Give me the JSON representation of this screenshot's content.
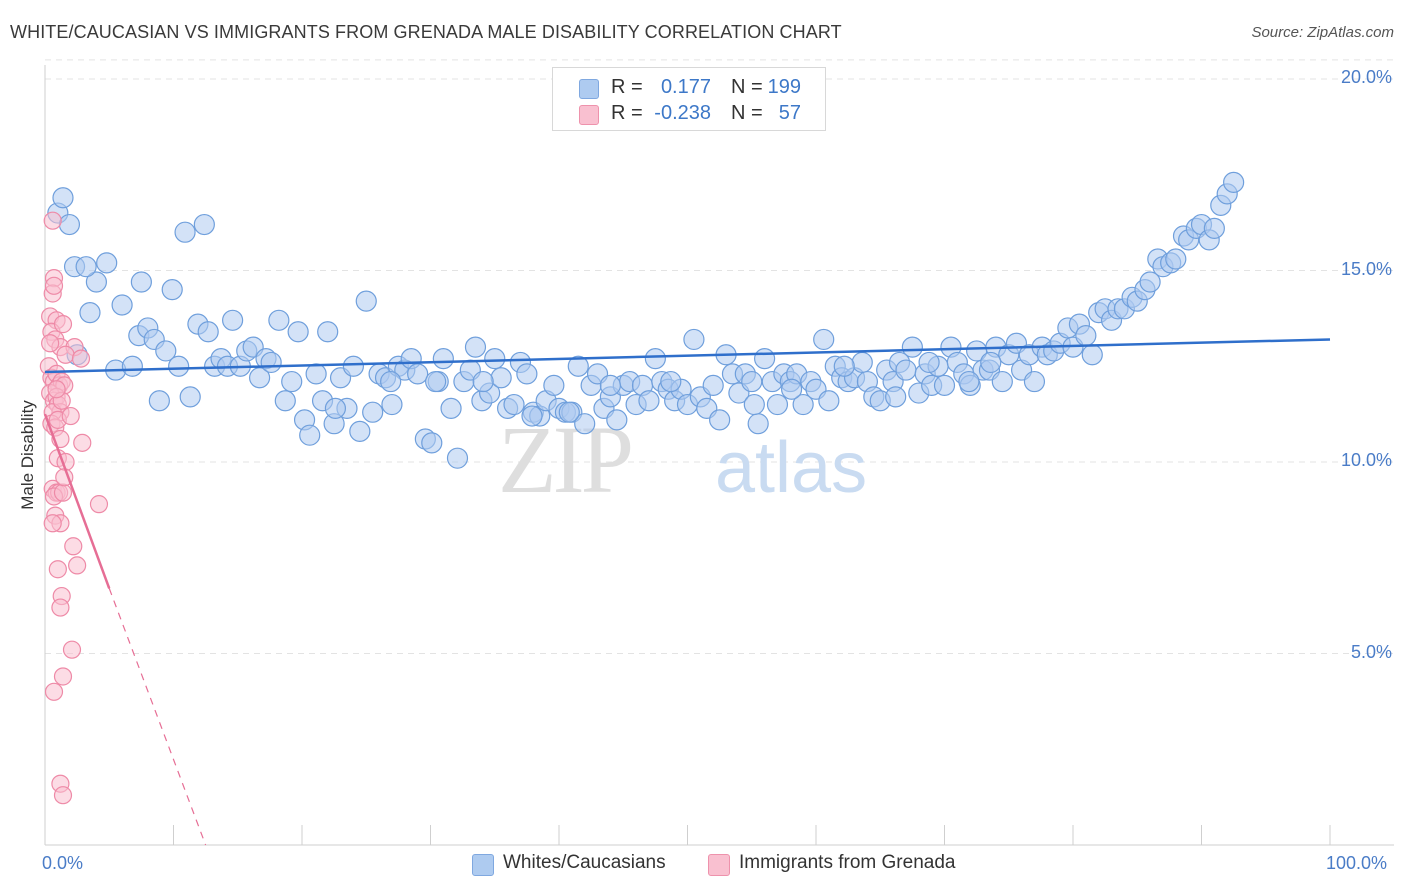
{
  "title": "WHITE/CAUCASIAN VS IMMIGRANTS FROM GRENADA MALE DISABILITY CORRELATION CHART",
  "source": "Source: ZipAtlas.com",
  "watermark": {
    "zip": "ZIP",
    "atlas": "atlas"
  },
  "legend_top": {
    "rows": [
      {
        "r_label": "R =",
        "r_value": "0.177",
        "n_label": "N =",
        "n_value": "199",
        "color": "#aecbf0",
        "border": "#7fa8e0"
      },
      {
        "r_label": "R =",
        "r_value": "-0.238",
        "n_label": "N =",
        "n_value": "57",
        "color": "#f9c0d0",
        "border": "#ee92ac"
      }
    ]
  },
  "legend_bottom": [
    {
      "label": "Whites/Caucasians",
      "color": "#aecbf0",
      "border": "#7fa8e0"
    },
    {
      "label": "Immigrants from Grenada",
      "color": "#f9c0d0",
      "border": "#ee92ac"
    }
  ],
  "chart_data": {
    "type": "scatter",
    "title": "WHITE/CAUCASIAN VS IMMIGRANTS FROM GRENADA MALE DISABILITY CORRELATION CHART",
    "xlabel": "",
    "ylabel": "Male Disability",
    "xlim": [
      0,
      100
    ],
    "ylim": [
      0,
      20.5
    ],
    "x_ticks": [
      "0.0%",
      "100.0%"
    ],
    "y_ticks": [
      {
        "value": 5,
        "label": "5.0%"
      },
      {
        "value": 10,
        "label": "10.0%"
      },
      {
        "value": 15,
        "label": "15.0%"
      },
      {
        "value": 20,
        "label": "20.0%"
      }
    ],
    "grid": true,
    "legend": "bottom",
    "series": [
      {
        "name": "Whites/Caucasians",
        "color": "#aecbf0",
        "stroke": "#6f9fdc",
        "trend": {
          "x": [
            0,
            100
          ],
          "y": [
            12.35,
            13.2
          ],
          "color": "#2f6fcb"
        },
        "points": [
          [
            1.0,
            16.5
          ],
          [
            1.4,
            16.9
          ],
          [
            1.9,
            16.2
          ],
          [
            2.3,
            15.1
          ],
          [
            3.5,
            13.9
          ],
          [
            4.0,
            14.7
          ],
          [
            2.5,
            12.8
          ],
          [
            3.2,
            15.1
          ],
          [
            4.8,
            15.2
          ],
          [
            5.5,
            12.4
          ],
          [
            6.0,
            14.1
          ],
          [
            6.8,
            12.5
          ],
          [
            7.3,
            13.3
          ],
          [
            7.5,
            14.7
          ],
          [
            8.0,
            13.5
          ],
          [
            8.5,
            13.2
          ],
          [
            8.9,
            11.6
          ],
          [
            9.4,
            12.9
          ],
          [
            9.9,
            14.5
          ],
          [
            10.4,
            12.5
          ],
          [
            10.9,
            16.0
          ],
          [
            11.3,
            11.7
          ],
          [
            11.9,
            13.6
          ],
          [
            12.4,
            16.2
          ],
          [
            12.7,
            13.4
          ],
          [
            13.2,
            12.5
          ],
          [
            13.7,
            12.7
          ],
          [
            14.2,
            12.5
          ],
          [
            14.6,
            13.7
          ],
          [
            15.2,
            12.5
          ],
          [
            15.7,
            12.9
          ],
          [
            16.2,
            13.0
          ],
          [
            16.7,
            12.2
          ],
          [
            17.2,
            12.7
          ],
          [
            17.6,
            12.6
          ],
          [
            18.2,
            13.7
          ],
          [
            18.7,
            11.6
          ],
          [
            19.2,
            12.1
          ],
          [
            19.7,
            13.4
          ],
          [
            20.2,
            11.1
          ],
          [
            20.6,
            10.7
          ],
          [
            21.1,
            12.3
          ],
          [
            21.6,
            11.6
          ],
          [
            22.0,
            13.4
          ],
          [
            22.5,
            11.0
          ],
          [
            23.0,
            12.2
          ],
          [
            23.5,
            11.4
          ],
          [
            24.0,
            12.5
          ],
          [
            24.5,
            10.8
          ],
          [
            25.0,
            14.2
          ],
          [
            25.5,
            11.3
          ],
          [
            26.0,
            12.3
          ],
          [
            26.5,
            12.2
          ],
          [
            27.0,
            11.5
          ],
          [
            27.5,
            12.5
          ],
          [
            28.0,
            12.4
          ],
          [
            28.5,
            12.7
          ],
          [
            29.0,
            12.3
          ],
          [
            29.6,
            10.6
          ],
          [
            30.1,
            10.5
          ],
          [
            30.6,
            12.1
          ],
          [
            31.0,
            12.7
          ],
          [
            31.6,
            11.4
          ],
          [
            32.1,
            10.1
          ],
          [
            32.6,
            12.1
          ],
          [
            33.1,
            12.4
          ],
          [
            33.5,
            13.0
          ],
          [
            34.0,
            11.6
          ],
          [
            34.6,
            11.8
          ],
          [
            35.0,
            12.7
          ],
          [
            35.5,
            12.2
          ],
          [
            36.0,
            11.4
          ],
          [
            36.5,
            11.5
          ],
          [
            37.0,
            12.6
          ],
          [
            37.5,
            12.3
          ],
          [
            38.0,
            11.3
          ],
          [
            38.5,
            11.2
          ],
          [
            39.0,
            11.6
          ],
          [
            39.6,
            12.0
          ],
          [
            40.0,
            11.4
          ],
          [
            40.5,
            11.3
          ],
          [
            41.0,
            11.3
          ],
          [
            41.5,
            12.5
          ],
          [
            42.0,
            11.0
          ],
          [
            42.5,
            12.0
          ],
          [
            43.0,
            12.3
          ],
          [
            43.5,
            11.4
          ],
          [
            44.0,
            11.7
          ],
          [
            44.5,
            11.1
          ],
          [
            45.0,
            12.0
          ],
          [
            45.5,
            12.1
          ],
          [
            46.0,
            11.5
          ],
          [
            46.5,
            12.0
          ],
          [
            47.0,
            11.6
          ],
          [
            47.5,
            12.7
          ],
          [
            48.0,
            12.1
          ],
          [
            48.5,
            11.9
          ],
          [
            49.0,
            11.6
          ],
          [
            49.5,
            11.9
          ],
          [
            50.0,
            11.5
          ],
          [
            50.5,
            13.2
          ],
          [
            51.0,
            11.7
          ],
          [
            51.5,
            11.4
          ],
          [
            52.0,
            12.0
          ],
          [
            52.5,
            11.1
          ],
          [
            53.0,
            12.8
          ],
          [
            53.5,
            12.3
          ],
          [
            54.0,
            11.8
          ],
          [
            54.5,
            12.3
          ],
          [
            55.0,
            12.1
          ],
          [
            55.5,
            11.0
          ],
          [
            56.0,
            12.7
          ],
          [
            56.6,
            12.1
          ],
          [
            57.0,
            11.5
          ],
          [
            57.5,
            12.3
          ],
          [
            58.0,
            12.1
          ],
          [
            58.5,
            12.3
          ],
          [
            59.0,
            11.5
          ],
          [
            59.6,
            12.1
          ],
          [
            60.0,
            11.9
          ],
          [
            60.6,
            13.2
          ],
          [
            61.0,
            11.6
          ],
          [
            61.5,
            12.5
          ],
          [
            62.0,
            12.2
          ],
          [
            62.5,
            12.1
          ],
          [
            63.0,
            12.2
          ],
          [
            63.6,
            12.6
          ],
          [
            64.0,
            12.1
          ],
          [
            64.5,
            11.7
          ],
          [
            65.0,
            11.6
          ],
          [
            65.5,
            12.4
          ],
          [
            66.0,
            12.1
          ],
          [
            66.5,
            12.6
          ],
          [
            67.0,
            12.4
          ],
          [
            67.5,
            13.0
          ],
          [
            68.0,
            11.8
          ],
          [
            68.5,
            12.3
          ],
          [
            69.0,
            12.0
          ],
          [
            69.5,
            12.5
          ],
          [
            70.0,
            12.0
          ],
          [
            70.5,
            13.0
          ],
          [
            71.0,
            12.6
          ],
          [
            71.5,
            12.3
          ],
          [
            72.0,
            12.0
          ],
          [
            72.5,
            12.9
          ],
          [
            73.0,
            12.4
          ],
          [
            73.5,
            12.4
          ],
          [
            74.0,
            13.0
          ],
          [
            74.5,
            12.1
          ],
          [
            75.0,
            12.8
          ],
          [
            75.6,
            13.1
          ],
          [
            76.0,
            12.4
          ],
          [
            76.6,
            12.8
          ],
          [
            77.0,
            12.1
          ],
          [
            77.6,
            13.0
          ],
          [
            78.0,
            12.8
          ],
          [
            78.5,
            12.9
          ],
          [
            79.0,
            13.1
          ],
          [
            79.6,
            13.5
          ],
          [
            80.0,
            13.0
          ],
          [
            80.5,
            13.6
          ],
          [
            81.0,
            13.3
          ],
          [
            81.5,
            12.8
          ],
          [
            82.0,
            13.9
          ],
          [
            82.5,
            14.0
          ],
          [
            83.0,
            13.7
          ],
          [
            83.5,
            14.0
          ],
          [
            84.0,
            14.0
          ],
          [
            84.6,
            14.3
          ],
          [
            85.0,
            14.2
          ],
          [
            85.6,
            14.5
          ],
          [
            86.0,
            14.7
          ],
          [
            86.6,
            15.3
          ],
          [
            87.0,
            15.1
          ],
          [
            87.6,
            15.2
          ],
          [
            88.0,
            15.3
          ],
          [
            88.6,
            15.9
          ],
          [
            89.0,
            15.8
          ],
          [
            89.6,
            16.1
          ],
          [
            90.0,
            16.2
          ],
          [
            90.6,
            15.8
          ],
          [
            91.0,
            16.1
          ],
          [
            91.5,
            16.7
          ],
          [
            92.0,
            17.0
          ],
          [
            92.5,
            17.3
          ],
          [
            68.8,
            12.6
          ],
          [
            71.9,
            12.1
          ],
          [
            73.6,
            12.6
          ],
          [
            66.2,
            11.7
          ],
          [
            62.2,
            12.5
          ],
          [
            58.1,
            11.9
          ],
          [
            55.2,
            11.5
          ],
          [
            48.7,
            12.1
          ],
          [
            44.0,
            12.0
          ],
          [
            40.8,
            11.3
          ],
          [
            37.9,
            11.2
          ],
          [
            34.1,
            12.1
          ],
          [
            30.4,
            12.1
          ],
          [
            26.9,
            12.1
          ],
          [
            22.6,
            11.4
          ]
        ]
      },
      {
        "name": "Immigrants from Grenada",
        "color": "#f9c0d0",
        "stroke": "#ee8aa7",
        "trend": {
          "x": [
            0,
            5,
            12.5
          ],
          "y": [
            11.25,
            6.7,
            -0.5
          ],
          "color": "#e66e95"
        },
        "points": [
          [
            0.6,
            16.3
          ],
          [
            0.7,
            14.8
          ],
          [
            0.6,
            14.4
          ],
          [
            0.7,
            14.6
          ],
          [
            0.4,
            13.8
          ],
          [
            0.9,
            13.7
          ],
          [
            0.5,
            13.4
          ],
          [
            0.8,
            13.2
          ],
          [
            1.4,
            13.6
          ],
          [
            1.2,
            13.0
          ],
          [
            2.3,
            13.0
          ],
          [
            1.6,
            12.8
          ],
          [
            2.8,
            12.7
          ],
          [
            0.3,
            12.5
          ],
          [
            0.5,
            12.2
          ],
          [
            0.7,
            12.1
          ],
          [
            0.9,
            12.3
          ],
          [
            1.1,
            12.0
          ],
          [
            1.3,
            12.1
          ],
          [
            1.5,
            12.0
          ],
          [
            0.4,
            11.8
          ],
          [
            0.7,
            11.6
          ],
          [
            0.9,
            11.7
          ],
          [
            1.0,
            11.5
          ],
          [
            1.2,
            11.3
          ],
          [
            0.6,
            11.3
          ],
          [
            1.3,
            11.6
          ],
          [
            0.5,
            11.0
          ],
          [
            0.8,
            10.9
          ],
          [
            1.0,
            11.1
          ],
          [
            2.0,
            11.2
          ],
          [
            1.2,
            10.6
          ],
          [
            2.9,
            10.5
          ],
          [
            1.0,
            10.1
          ],
          [
            1.6,
            10.0
          ],
          [
            0.6,
            9.3
          ],
          [
            0.9,
            9.2
          ],
          [
            1.1,
            9.2
          ],
          [
            0.7,
            9.1
          ],
          [
            1.4,
            9.2
          ],
          [
            4.2,
            8.9
          ],
          [
            0.8,
            8.6
          ],
          [
            1.2,
            8.4
          ],
          [
            0.6,
            8.4
          ],
          [
            2.2,
            7.8
          ],
          [
            2.5,
            7.3
          ],
          [
            1.0,
            7.2
          ],
          [
            1.3,
            6.5
          ],
          [
            1.2,
            6.2
          ],
          [
            2.1,
            5.1
          ],
          [
            1.4,
            4.4
          ],
          [
            0.7,
            4.0
          ],
          [
            1.2,
            1.6
          ],
          [
            1.4,
            1.3
          ],
          [
            0.9,
            11.9
          ],
          [
            1.5,
            9.6
          ],
          [
            0.4,
            13.1
          ]
        ]
      }
    ]
  }
}
